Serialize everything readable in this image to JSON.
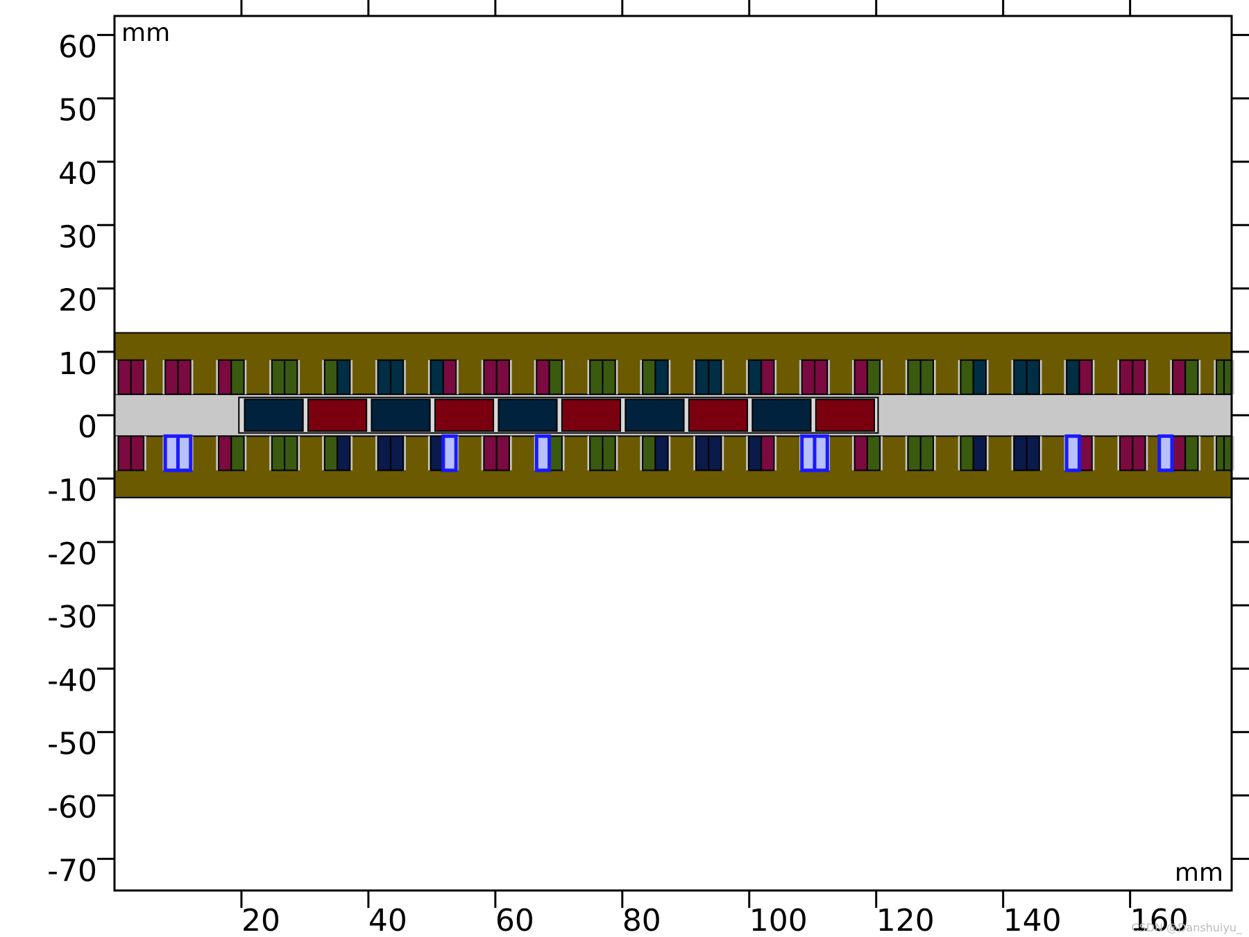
{
  "diagram": {
    "units": {
      "top_left": "mm",
      "bottom_right": "mm"
    },
    "x_axis": {
      "range": [
        0,
        176
      ],
      "ticks": [
        20,
        40,
        60,
        80,
        100,
        120,
        140,
        160
      ]
    },
    "y_axis": {
      "range": [
        -75,
        63
      ],
      "ticks": [
        60,
        50,
        40,
        30,
        20,
        10,
        0,
        -10,
        -20,
        -30,
        -40,
        -50,
        -60,
        -70
      ]
    },
    "stator_band": {
      "y_top": 13,
      "y_bottom": -13,
      "color": "#6b5a00"
    },
    "air_gap": {
      "y_top": 3.3,
      "y_bottom": -3.3,
      "color": "#c8c8c8"
    },
    "mover": {
      "x_start": 19.6,
      "x_end": 120.3,
      "y_top": 2.8,
      "y_bottom": -2.8,
      "magnets": [
        {
          "x0": 20.2,
          "x1": 30.0,
          "polarity": "N",
          "color": "#00223d"
        },
        {
          "x0": 30.2,
          "x1": 40.0,
          "polarity": "S",
          "color": "#7a0010"
        },
        {
          "x0": 40.2,
          "x1": 50.0,
          "polarity": "N",
          "color": "#00223d"
        },
        {
          "x0": 50.2,
          "x1": 60.0,
          "polarity": "S",
          "color": "#7a0010"
        },
        {
          "x0": 60.2,
          "x1": 70.0,
          "polarity": "N",
          "color": "#00223d"
        },
        {
          "x0": 70.2,
          "x1": 80.0,
          "polarity": "S",
          "color": "#7a0010"
        },
        {
          "x0": 80.2,
          "x1": 90.0,
          "polarity": "N",
          "color": "#00223d"
        },
        {
          "x0": 90.2,
          "x1": 100.0,
          "polarity": "S",
          "color": "#7a0010"
        },
        {
          "x0": 100.2,
          "x1": 110.0,
          "polarity": "N",
          "color": "#00223d"
        },
        {
          "x0": 110.2,
          "x1": 120.0,
          "polarity": "S",
          "color": "#7a0010"
        }
      ]
    },
    "slots": {
      "centers_x": [
        2.6,
        10.0,
        18.4,
        26.8,
        35.1,
        43.5,
        51.8,
        60.2,
        68.5,
        76.9,
        85.2,
        93.6,
        101.9,
        110.3,
        118.6,
        127.0,
        135.3,
        143.7,
        152.0,
        160.4,
        168.7,
        175.6
      ],
      "width": 4.0,
      "top_row": {
        "y_top": 8.7,
        "y_bottom": 3.3
      },
      "bottom_row": {
        "y_top": -3.3,
        "y_bottom": -8.7
      },
      "phase_colors": {
        "A": "#7a0a40",
        "B": "#3a5a10",
        "C": "#002e44",
        "D": "#0a1a4a"
      },
      "top_coils": [
        [
          "A",
          "A"
        ],
        [
          "A",
          "A"
        ],
        [
          "A",
          "B"
        ],
        [
          "B",
          "B"
        ],
        [
          "B",
          "C"
        ],
        [
          "C",
          "C"
        ],
        [
          "C",
          "A"
        ],
        [
          "A",
          "A"
        ],
        [
          "A",
          "B"
        ],
        [
          "B",
          "B"
        ],
        [
          "B",
          "C"
        ],
        [
          "C",
          "C"
        ],
        [
          "C",
          "A"
        ],
        [
          "A",
          "A"
        ],
        [
          "A",
          "B"
        ],
        [
          "B",
          "B"
        ],
        [
          "B",
          "C"
        ],
        [
          "C",
          "C"
        ],
        [
          "C",
          "A"
        ],
        [
          "A",
          "A"
        ],
        [
          "A",
          "B"
        ],
        [
          "B",
          "B"
        ]
      ],
      "bottom_coils": [
        [
          "A",
          "A"
        ],
        [
          "A",
          "A"
        ],
        [
          "A",
          "B"
        ],
        [
          "B",
          "B"
        ],
        [
          "B",
          "D"
        ],
        [
          "D",
          "D"
        ],
        [
          "D",
          "A"
        ],
        [
          "A",
          "A"
        ],
        [
          "A",
          "B"
        ],
        [
          "B",
          "B"
        ],
        [
          "B",
          "D"
        ],
        [
          "D",
          "D"
        ],
        [
          "D",
          "A"
        ],
        [
          "A",
          "A"
        ],
        [
          "A",
          "B"
        ],
        [
          "B",
          "B"
        ],
        [
          "B",
          "D"
        ],
        [
          "D",
          "D"
        ],
        [
          "D",
          "A"
        ],
        [
          "A",
          "A"
        ],
        [
          "A",
          "B"
        ],
        [
          "B",
          "B"
        ]
      ]
    },
    "highlights": {
      "color": "#1a1aff",
      "fill": "#b8c0ff",
      "items": [
        {
          "x0": 8.0,
          "x1": 12.0,
          "split": true
        },
        {
          "x0": 51.8,
          "x1": 53.8,
          "split": false
        },
        {
          "x0": 66.5,
          "x1": 68.5,
          "split": false
        },
        {
          "x0": 108.3,
          "x1": 112.3,
          "split": true
        },
        {
          "x0": 150.0,
          "x1": 152.0,
          "split": false
        },
        {
          "x0": 164.6,
          "x1": 166.6,
          "split": false
        }
      ]
    },
    "watermark": "CSDN @Danshuiyu_"
  }
}
